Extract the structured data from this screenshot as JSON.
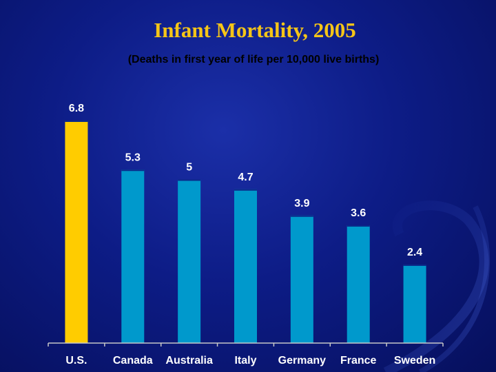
{
  "chart_data": {
    "type": "bar",
    "title": "Infant Mortality, 2005",
    "subtitle": "(Deaths in first year of life per 10,000 live births)",
    "categories": [
      "U.S.",
      "Canada",
      "Australia",
      "Italy",
      "Germany",
      "France",
      "Sweden"
    ],
    "values": [
      6.8,
      5.3,
      5,
      4.7,
      3.9,
      3.6,
      2.4
    ],
    "value_labels": [
      "6.8",
      "5.3",
      "5",
      "4.7",
      "3.9",
      "3.6",
      "2.4"
    ],
    "highlight_index": 0,
    "colors": {
      "highlight": "#FFCC00",
      "default": "#0099CC",
      "bar_top": "#0a2a8a"
    },
    "ylim": [
      0,
      6.8
    ],
    "grid": false,
    "legend": "none"
  }
}
